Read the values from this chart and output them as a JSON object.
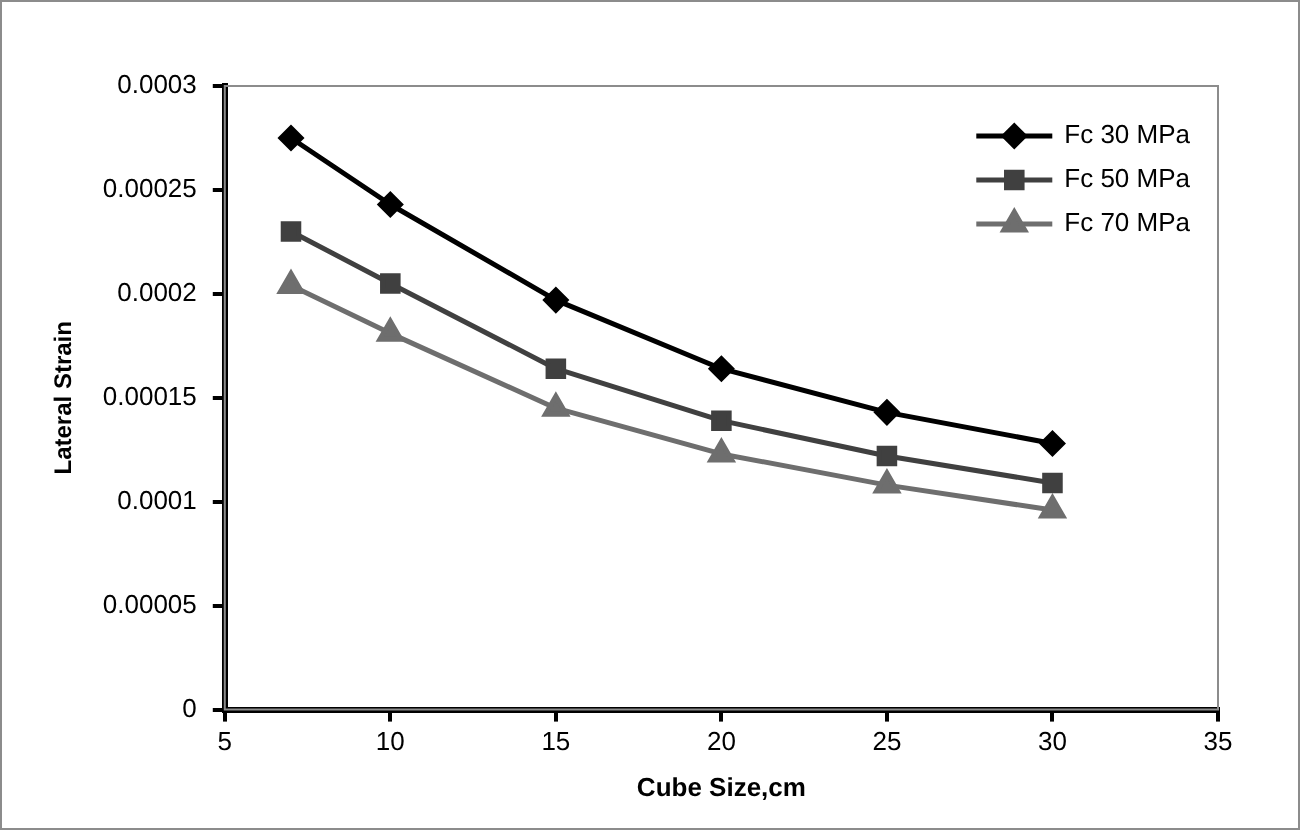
{
  "chart_data": {
    "type": "line",
    "xlabel": "Cube Size,cm",
    "ylabel": "Lateral Strain",
    "x": [
      7,
      10,
      15,
      20,
      25,
      30
    ],
    "series": [
      {
        "name": "Fc 30 MPa",
        "color": "#000000",
        "marker": "diamond",
        "values": [
          0.000275,
          0.000243,
          0.000197,
          0.000164,
          0.000143,
          0.000128
        ]
      },
      {
        "name": "Fc 50 MPa",
        "color": "#404040",
        "marker": "square",
        "values": [
          0.00023,
          0.000205,
          0.000164,
          0.000139,
          0.000122,
          0.000109
        ]
      },
      {
        "name": "Fc 70 MPa",
        "color": "#6e6e6e",
        "marker": "triangle",
        "values": [
          0.000204,
          0.000181,
          0.000145,
          0.000123,
          0.000108,
          9.6e-05
        ]
      }
    ],
    "xlim": [
      5,
      35
    ],
    "xticks": [
      5,
      10,
      15,
      20,
      25,
      30,
      35
    ],
    "ylim": [
      0,
      0.0003
    ],
    "yticks": [
      0,
      {
        "value": 5e-05,
        "label": "0.00005"
      },
      0.0001,
      0.00015,
      0.0002,
      0.00025,
      0.0003
    ],
    "grid": false,
    "legend": "top right"
  }
}
